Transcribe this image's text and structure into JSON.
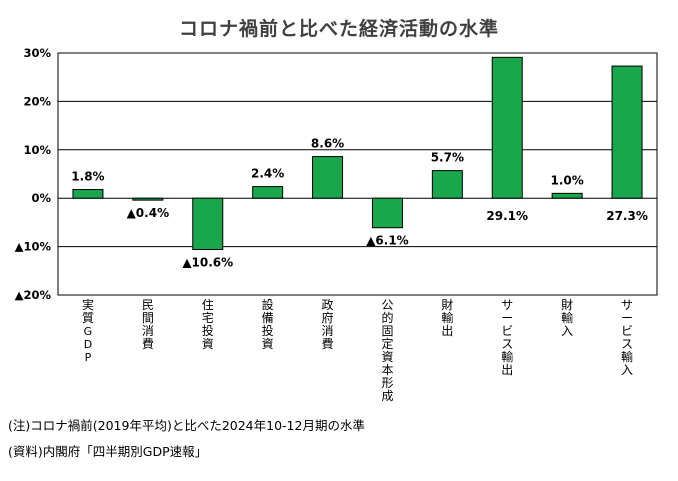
{
  "chart_data": {
    "type": "bar",
    "title": "コロナ禍前と比べた経済活動の水準",
    "xlabel": "",
    "ylabel": "",
    "categories": [
      "実質GDP",
      "民間消費",
      "住宅投資",
      "設備投資",
      "政府消費",
      "公的固定資本形成",
      "財輸出",
      "サービス輸出",
      "財輸入",
      "サービス輸入"
    ],
    "values": [
      1.8,
      -0.4,
      -10.6,
      2.4,
      8.6,
      -6.1,
      5.7,
      29.1,
      1.0,
      27.3
    ],
    "data_labels": [
      "1.8%",
      "▲0.4%",
      "▲10.6%",
      "2.4%",
      "8.6%",
      "▲6.1%",
      "5.7%",
      "29.1%",
      "1.0%",
      "27.3%"
    ],
    "ylim": [
      -20,
      30
    ],
    "yticks": [
      30,
      20,
      10,
      0,
      -10,
      -20
    ],
    "ytick_labels": [
      "30%",
      "20%",
      "10%",
      "0%",
      "▲10%",
      "▲20%"
    ],
    "grid": true,
    "bar_color": "#1aa64a",
    "bar_edge_color": "#000000"
  },
  "notes": {
    "note1": "(注)コロナ禍前(2019年平均)と比べた2024年10-12月期の水準",
    "note2": "(資料)内閣府「四半期別GDP速報」"
  }
}
